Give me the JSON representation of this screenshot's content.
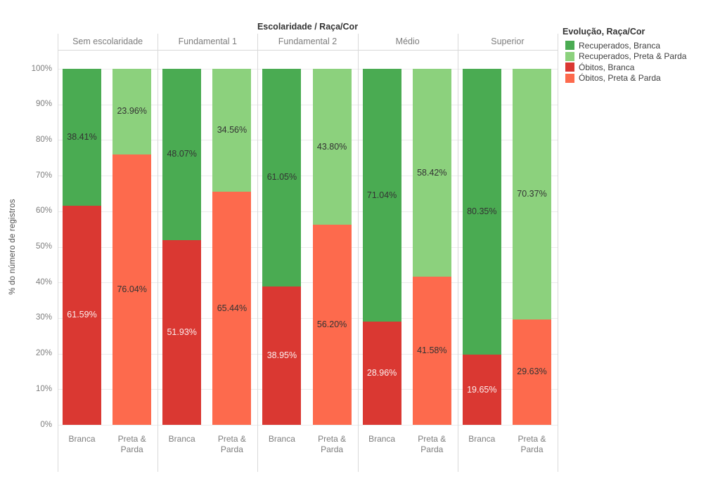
{
  "chart": {
    "title": "Escolaridade / Raça/Cor",
    "y_axis_title": "% do número de registros",
    "legend": {
      "title": "Evolução, Raça/Cor",
      "items": [
        {
          "label": "Recuperados, Branca",
          "color": "#4aab52"
        },
        {
          "label": "Recuperados, Preta & Parda",
          "color": "#8cd17d"
        },
        {
          "label": "Óbitos, Branca",
          "color": "#da3832"
        },
        {
          "label": "Óbitos, Preta & Parda",
          "color": "#fd6a4d"
        }
      ]
    }
  },
  "chart_data": {
    "type": "bar",
    "stacked": true,
    "unit": "%",
    "title": "Escolaridade / Raça/Cor",
    "xlabel": "",
    "ylabel": "% do número de registros",
    "ylim": [
      0,
      100
    ],
    "grid": true,
    "legend_position": "top-right",
    "y_ticks": [
      "100%",
      "90%",
      "80%",
      "70%",
      "60%",
      "50%",
      "40%",
      "30%",
      "20%",
      "10%",
      "0%"
    ],
    "groups": [
      {
        "label": "Sem escolaridade",
        "bars": [
          {
            "label": "Branca",
            "segments": [
              {
                "series": "Recuperados, Branca",
                "value": 38.41,
                "display": "38.41%",
                "color": "#4aab52",
                "label_color": "#333333"
              },
              {
                "series": "Óbitos, Branca",
                "value": 61.59,
                "display": "61.59%",
                "color": "#da3832",
                "label_color": "rgba(255,255,255,0.92)"
              }
            ]
          },
          {
            "label": "Preta & Parda",
            "segments": [
              {
                "series": "Recuperados, Preta & Parda",
                "value": 23.96,
                "display": "23.96%",
                "color": "#8cd17d",
                "label_color": "#333333"
              },
              {
                "series": "Óbitos, Preta & Parda",
                "value": 76.04,
                "display": "76.04%",
                "color": "#fd6a4d",
                "label_color": "#333333"
              }
            ]
          }
        ]
      },
      {
        "label": "Fundamental 1",
        "bars": [
          {
            "label": "Branca",
            "segments": [
              {
                "series": "Recuperados, Branca",
                "value": 48.07,
                "display": "48.07%",
                "color": "#4aab52",
                "label_color": "#333333"
              },
              {
                "series": "Óbitos, Branca",
                "value": 51.93,
                "display": "51.93%",
                "color": "#da3832",
                "label_color": "rgba(255,255,255,0.92)"
              }
            ]
          },
          {
            "label": "Preta & Parda",
            "segments": [
              {
                "series": "Recuperados, Preta & Parda",
                "value": 34.56,
                "display": "34.56%",
                "color": "#8cd17d",
                "label_color": "#333333"
              },
              {
                "series": "Óbitos, Preta & Parda",
                "value": 65.44,
                "display": "65.44%",
                "color": "#fd6a4d",
                "label_color": "#333333"
              }
            ]
          }
        ]
      },
      {
        "label": "Fundamental 2",
        "bars": [
          {
            "label": "Branca",
            "segments": [
              {
                "series": "Recuperados, Branca",
                "value": 61.05,
                "display": "61.05%",
                "color": "#4aab52",
                "label_color": "#333333"
              },
              {
                "series": "Óbitos, Branca",
                "value": 38.95,
                "display": "38.95%",
                "color": "#da3832",
                "label_color": "rgba(255,255,255,0.92)"
              }
            ]
          },
          {
            "label": "Preta & Parda",
            "segments": [
              {
                "series": "Recuperados, Preta & Parda",
                "value": 43.8,
                "display": "43.80%",
                "color": "#8cd17d",
                "label_color": "#333333"
              },
              {
                "series": "Óbitos, Preta & Parda",
                "value": 56.2,
                "display": "56.20%",
                "color": "#fd6a4d",
                "label_color": "#333333"
              }
            ]
          }
        ]
      },
      {
        "label": "Médio",
        "bars": [
          {
            "label": "Branca",
            "segments": [
              {
                "series": "Recuperados, Branca",
                "value": 71.04,
                "display": "71.04%",
                "color": "#4aab52",
                "label_color": "#333333"
              },
              {
                "series": "Óbitos, Branca",
                "value": 28.96,
                "display": "28.96%",
                "color": "#da3832",
                "label_color": "rgba(255,255,255,0.92)"
              }
            ]
          },
          {
            "label": "Preta & Parda",
            "segments": [
              {
                "series": "Recuperados, Preta & Parda",
                "value": 58.42,
                "display": "58.42%",
                "color": "#8cd17d",
                "label_color": "#333333"
              },
              {
                "series": "Óbitos, Preta & Parda",
                "value": 41.58,
                "display": "41.58%",
                "color": "#fd6a4d",
                "label_color": "#333333"
              }
            ]
          }
        ]
      },
      {
        "label": "Superior",
        "bars": [
          {
            "label": "Branca",
            "segments": [
              {
                "series": "Recuperados, Branca",
                "value": 80.35,
                "display": "80.35%",
                "color": "#4aab52",
                "label_color": "#333333"
              },
              {
                "series": "Óbitos, Branca",
                "value": 19.65,
                "display": "19.65%",
                "color": "#da3832",
                "label_color": "rgba(255,255,255,0.92)"
              }
            ]
          },
          {
            "label": "Preta & Parda",
            "segments": [
              {
                "series": "Recuperados, Preta & Parda",
                "value": 70.37,
                "display": "70.37%",
                "color": "#8cd17d",
                "label_color": "#333333"
              },
              {
                "series": "Óbitos, Preta & Parda",
                "value": 29.63,
                "display": "29.63%",
                "color": "#fd6a4d",
                "label_color": "#333333"
              }
            ]
          }
        ]
      }
    ]
  }
}
